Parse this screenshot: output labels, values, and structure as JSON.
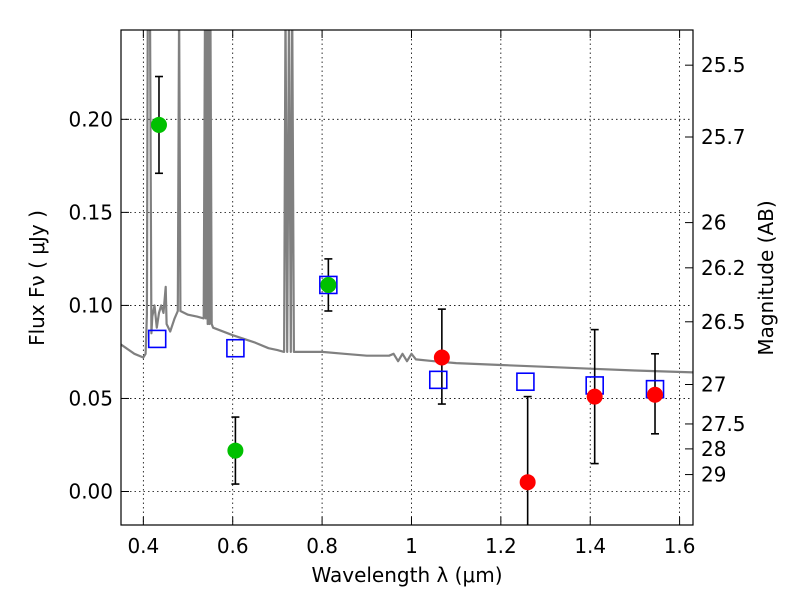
{
  "chart_data": {
    "type": "scatter",
    "xlabel": "Wavelength  λ (μm)",
    "ylabel": "Flux  Fν  ( μJy )",
    "y2label": "Magnitude (AB)",
    "xlim": [
      0.35,
      1.63
    ],
    "ylim": [
      -0.018,
      0.248
    ],
    "grid": true,
    "x_ticks": [
      0.4,
      0.6,
      0.8,
      1.0,
      1.2,
      1.4,
      1.6
    ],
    "x_tick_labels": [
      "0.4",
      "0.6",
      "0.8",
      "1",
      "1.2",
      "1.4",
      "1.6"
    ],
    "y_ticks": [
      0.0,
      0.05,
      0.1,
      0.15,
      0.2
    ],
    "y_tick_labels": [
      "0.00",
      "0.05",
      "0.10",
      "0.15",
      "0.20"
    ],
    "mag_ticks": [
      {
        "label": "25.5",
        "flux": 0.2291
      },
      {
        "label": "25.7",
        "flux": 0.1905
      },
      {
        "label": "26",
        "flux": 0.1445
      },
      {
        "label": "26.2",
        "flux": 0.1202
      },
      {
        "label": "26.5",
        "flux": 0.0912
      },
      {
        "label": "27",
        "flux": 0.0575
      },
      {
        "label": "27.5",
        "flux": 0.0363
      },
      {
        "label": "28",
        "flux": 0.0229
      },
      {
        "label": "29",
        "flux": 0.0091
      }
    ],
    "series": [
      {
        "marker": "circle",
        "color": "#00c000",
        "points": [
          {
            "x": 0.435,
            "y": 0.197,
            "err_low": 0.171,
            "err_high": 0.223
          },
          {
            "x": 0.606,
            "y": 0.022,
            "err_low": 0.004,
            "err_high": 0.04
          },
          {
            "x": 0.814,
            "y": 0.111,
            "err_low": 0.097,
            "err_high": 0.125
          }
        ]
      },
      {
        "marker": "circle",
        "color": "#ff0000",
        "points": [
          {
            "x": 1.068,
            "y": 0.072,
            "err_low": 0.047,
            "err_high": 0.098
          },
          {
            "x": 1.26,
            "y": 0.005,
            "err_low": -0.02,
            "err_high": 0.051
          },
          {
            "x": 1.41,
            "y": 0.051,
            "err_low": 0.015,
            "err_high": 0.087
          },
          {
            "x": 1.545,
            "y": 0.052,
            "err_low": 0.031,
            "err_high": 0.074
          }
        ]
      },
      {
        "marker": "square-open",
        "color": "#0000ff",
        "points": [
          {
            "x": 0.431,
            "y": 0.082
          },
          {
            "x": 0.606,
            "y": 0.077
          },
          {
            "x": 0.814,
            "y": 0.111
          },
          {
            "x": 1.06,
            "y": 0.06
          },
          {
            "x": 1.255,
            "y": 0.059
          },
          {
            "x": 1.41,
            "y": 0.057
          },
          {
            "x": 1.545,
            "y": 0.055
          }
        ]
      }
    ],
    "model_spectrum": {
      "color": "#808080",
      "points": [
        [
          0.35,
          0.079
        ],
        [
          0.38,
          0.074
        ],
        [
          0.4,
          0.072
        ],
        [
          0.405,
          0.074
        ],
        [
          0.408,
          0.095
        ],
        [
          0.41,
          0.26
        ],
        [
          0.415,
          0.26
        ],
        [
          0.418,
          0.085
        ],
        [
          0.42,
          0.094
        ],
        [
          0.425,
          0.1
        ],
        [
          0.43,
          0.088
        ],
        [
          0.435,
          0.096
        ],
        [
          0.44,
          0.1
        ],
        [
          0.445,
          0.096
        ],
        [
          0.45,
          0.11
        ],
        [
          0.452,
          0.09
        ],
        [
          0.46,
          0.086
        ],
        [
          0.47,
          0.093
        ],
        [
          0.477,
          0.097
        ],
        [
          0.48,
          0.26
        ],
        [
          0.483,
          0.097
        ],
        [
          0.5,
          0.095
        ],
        [
          0.52,
          0.094
        ],
        [
          0.535,
          0.093
        ],
        [
          0.538,
          0.26
        ],
        [
          0.54,
          0.093
        ],
        [
          0.542,
          0.26
        ],
        [
          0.544,
          0.09
        ],
        [
          0.546,
          0.26
        ],
        [
          0.548,
          0.09
        ],
        [
          0.55,
          0.26
        ],
        [
          0.553,
          0.09
        ],
        [
          0.556,
          0.088
        ],
        [
          0.6,
          0.084
        ],
        [
          0.65,
          0.08
        ],
        [
          0.68,
          0.077
        ],
        [
          0.7,
          0.076
        ],
        [
          0.715,
          0.075
        ],
        [
          0.718,
          0.26
        ],
        [
          0.722,
          0.075
        ],
        [
          0.726,
          0.26
        ],
        [
          0.73,
          0.075
        ],
        [
          0.733,
          0.26
        ],
        [
          0.737,
          0.075
        ],
        [
          0.75,
          0.075
        ],
        [
          0.8,
          0.075
        ],
        [
          0.85,
          0.074
        ],
        [
          0.9,
          0.073
        ],
        [
          0.95,
          0.073
        ],
        [
          0.96,
          0.074
        ],
        [
          0.97,
          0.07
        ],
        [
          0.98,
          0.074
        ],
        [
          0.99,
          0.07
        ],
        [
          1.0,
          0.074
        ],
        [
          1.01,
          0.071
        ],
        [
          1.05,
          0.07
        ],
        [
          1.1,
          0.069
        ],
        [
          1.2,
          0.068
        ],
        [
          1.3,
          0.067
        ],
        [
          1.4,
          0.066
        ],
        [
          1.5,
          0.065
        ],
        [
          1.63,
          0.064
        ]
      ]
    }
  }
}
